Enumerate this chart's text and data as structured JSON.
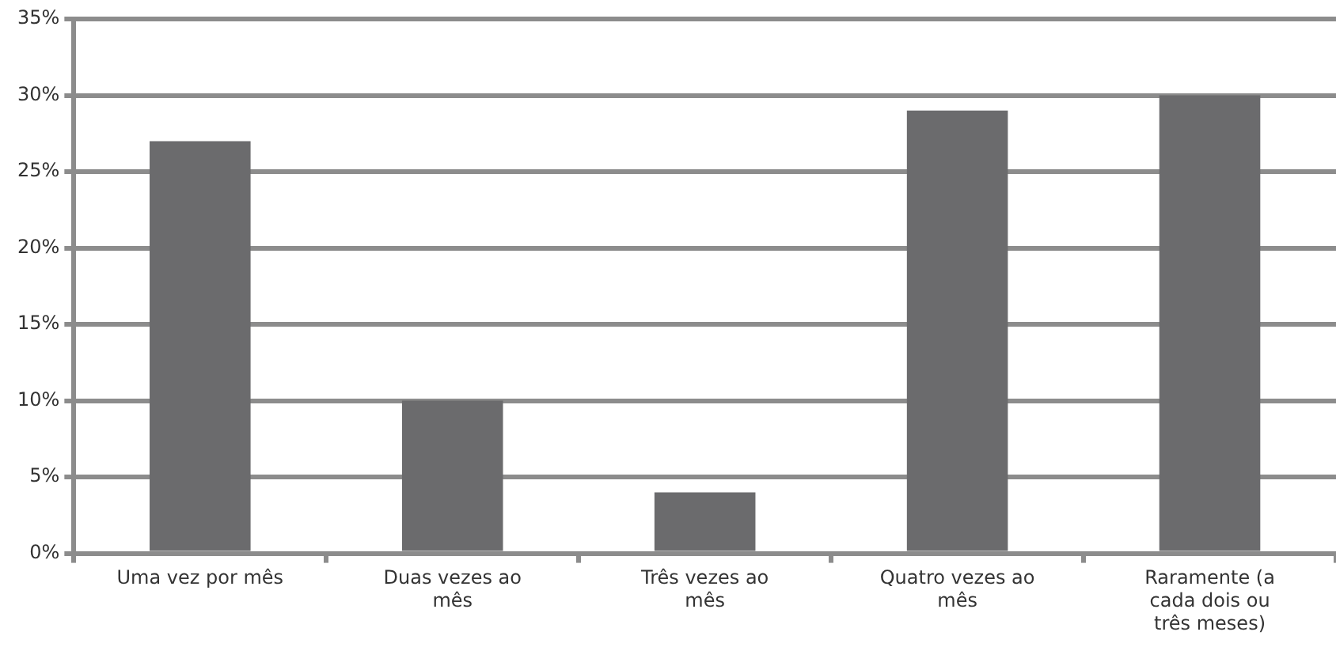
{
  "chart_data": {
    "type": "bar",
    "categories": [
      "Uma vez por mês",
      "Duas vezes ao mês",
      "Três vezes ao mês",
      "Quatro vezes ao mês",
      "Raramente (a cada dois ou três meses)"
    ],
    "values": [
      27,
      10,
      4,
      29,
      30
    ],
    "color": "#6b6b6d",
    "ylim": [
      0,
      35
    ],
    "yticks": [
      {
        "value": 0,
        "label": "0%"
      },
      {
        "value": 5,
        "label": "5%"
      },
      {
        "value": 10,
        "label": "10%"
      },
      {
        "value": 15,
        "label": "15%"
      },
      {
        "value": 20,
        "label": "20%"
      },
      {
        "value": 25,
        "label": "25%"
      },
      {
        "value": 30,
        "label": "30%"
      },
      {
        "value": 35,
        "label": "35%"
      }
    ],
    "grid": "y",
    "legend": false
  }
}
